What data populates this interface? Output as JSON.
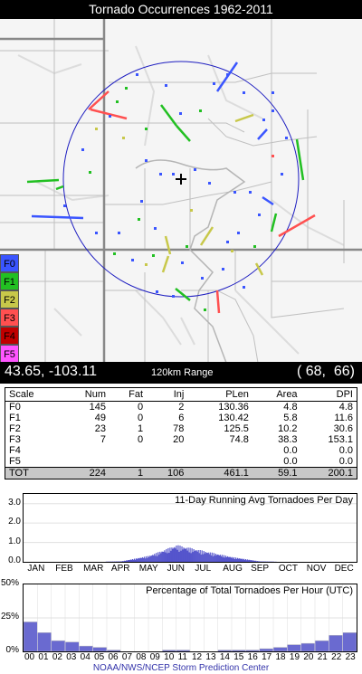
{
  "title": "Tornado Occurrences 1962-2011",
  "legend": [
    {
      "label": "F0",
      "color": "#3a55ff"
    },
    {
      "label": "F1",
      "color": "#22c022"
    },
    {
      "label": "F2",
      "color": "#c8c84a"
    },
    {
      "label": "F3",
      "color": "#ff5050"
    },
    {
      "label": "F4",
      "color": "#c00000"
    },
    {
      "label": "F5",
      "color": "#ff55ff"
    }
  ],
  "coordinates": {
    "latlon": "43.65, -103.11",
    "range": "120km Range",
    "grid": "( 68,  66)"
  },
  "table": {
    "headers": [
      "Scale",
      "Num",
      "Fat",
      "Inj",
      "PLen",
      "Area",
      "DPI"
    ],
    "rows": [
      [
        "F0",
        "145",
        "0",
        "2",
        "130.36",
        "4.8",
        "4.8"
      ],
      [
        "F1",
        "49",
        "0",
        "6",
        "130.42",
        "5.8",
        "11.6"
      ],
      [
        "F2",
        "23",
        "1",
        "78",
        "125.5",
        "10.2",
        "30.6"
      ],
      [
        "F3",
        "7",
        "0",
        "20",
        "74.8",
        "38.3",
        "153.1"
      ],
      [
        "F4",
        "",
        "",
        "",
        "",
        "0.0",
        "0.0"
      ],
      [
        "F5",
        "",
        "",
        "",
        "",
        "0.0",
        "0.0"
      ]
    ],
    "total": [
      "TOT",
      "224",
      "1",
      "106",
      "461.1",
      "59.1",
      "200.1"
    ]
  },
  "daily_chart": {
    "title": "11-Day Running Avg Tornadoes Per Day",
    "yticks": [
      "3.0",
      "2.0",
      "1.0",
      "0.0"
    ],
    "months": [
      "JAN",
      "FEB",
      "MAR",
      "APR",
      "MAY",
      "JUN",
      "JUL",
      "AUG",
      "SEP",
      "OCT",
      "NOV",
      "DEC"
    ]
  },
  "hourly_chart": {
    "title": "Percentage of Total Tornadoes Per Hour (UTC)",
    "yticks": [
      "50%",
      "25%",
      "0%"
    ],
    "hours": [
      "00",
      "01",
      "02",
      "03",
      "04",
      "05",
      "06",
      "07",
      "08",
      "09",
      "10",
      "11",
      "12",
      "13",
      "14",
      "15",
      "16",
      "17",
      "18",
      "19",
      "20",
      "21",
      "22",
      "23"
    ]
  },
  "chart_data": [
    {
      "type": "area",
      "title": "11-Day Running Avg Tornadoes Per Day",
      "xlabel": "",
      "ylabel": "",
      "ylim": [
        0,
        3.5
      ],
      "x": [
        "JAN",
        "FEB",
        "MAR",
        "APR",
        "MAY",
        "JUN",
        "JUL",
        "AUG",
        "SEP",
        "OCT",
        "NOV",
        "DEC"
      ],
      "values": [
        0.0,
        0.0,
        0.0,
        0.02,
        0.25,
        0.7,
        0.45,
        0.2,
        0.02,
        0.0,
        0.0,
        0.0
      ],
      "color": "#5555cc"
    },
    {
      "type": "bar",
      "title": "Percentage of Total Tornadoes Per Hour (UTC)",
      "ylim": [
        0,
        50
      ],
      "categories": [
        "00",
        "01",
        "02",
        "03",
        "04",
        "05",
        "06",
        "07",
        "08",
        "09",
        "10",
        "11",
        "12",
        "13",
        "14",
        "15",
        "16",
        "17",
        "18",
        "19",
        "20",
        "21",
        "22",
        "23"
      ],
      "values": [
        22,
        14,
        8,
        7,
        4,
        3,
        1,
        0,
        0,
        0,
        1,
        1,
        0,
        0,
        1,
        1,
        1,
        2,
        3,
        5,
        6,
        8,
        12,
        14
      ],
      "color": "#6a6ad0"
    }
  ]
}
